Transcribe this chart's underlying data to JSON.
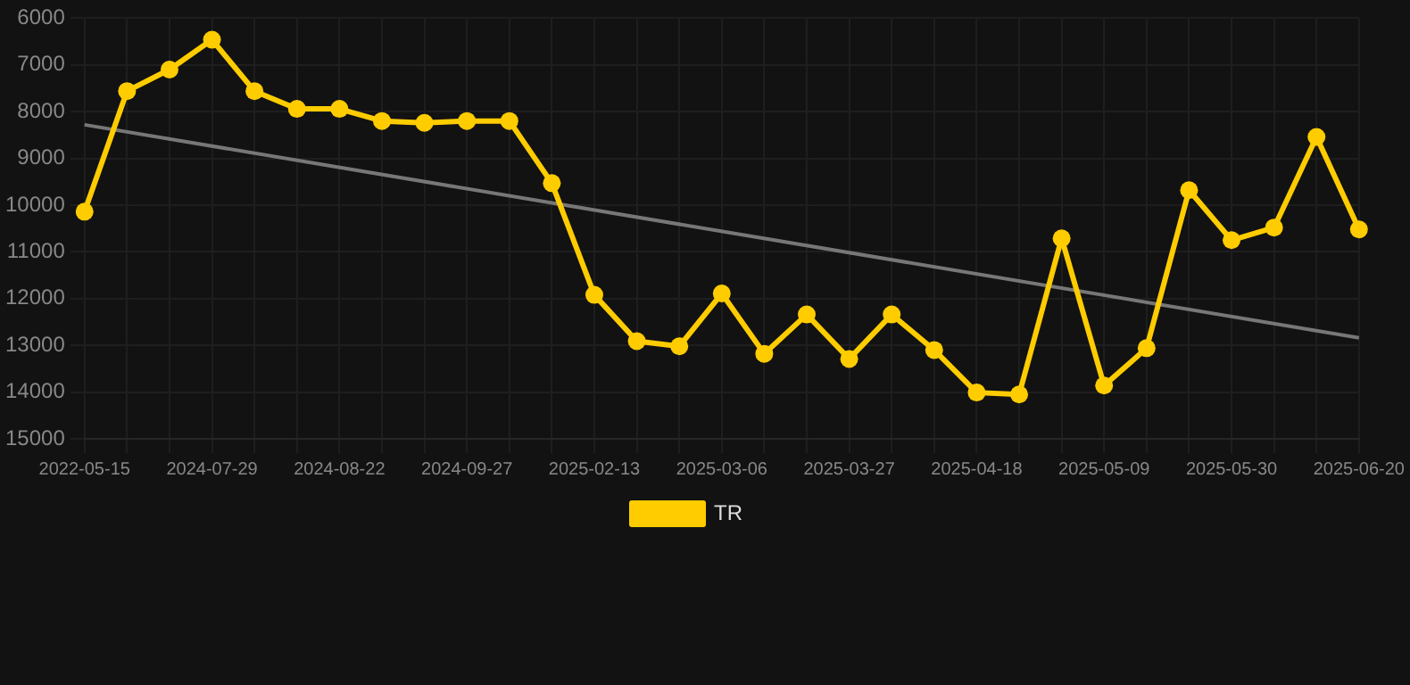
{
  "chart_data": {
    "type": "line",
    "categories": [
      "2022-05-15",
      null,
      null,
      "2024-07-29",
      null,
      null,
      "2024-08-22",
      null,
      null,
      "2024-09-27",
      null,
      null,
      "2025-02-13",
      null,
      null,
      "2025-03-06",
      null,
      null,
      "2025-03-27",
      null,
      null,
      "2025-04-18",
      null,
      null,
      "2025-05-09",
      null,
      null,
      "2025-05-30",
      null,
      null,
      "2025-06-20"
    ],
    "series": [
      {
        "name": "TR",
        "color": "#ffcc00",
        "values": [
          10140,
          7560,
          7100,
          6460,
          7560,
          7940,
          7940,
          8200,
          8240,
          8200,
          8200,
          9530,
          11920,
          12910,
          13020,
          11890,
          13180,
          12340,
          13290,
          12340,
          13100,
          14010,
          14050,
          10710,
          13860,
          13060,
          9680,
          10750,
          10480,
          8540,
          10520
        ],
        "marker": "circle"
      },
      {
        "type": "line",
        "color": "#777777",
        "values": [
          8280,
          null,
          null,
          null,
          null,
          null,
          null,
          null,
          null,
          null,
          null,
          null,
          null,
          null,
          null,
          null,
          null,
          null,
          null,
          null,
          null,
          null,
          null,
          null,
          null,
          null,
          null,
          null,
          null,
          null,
          12840
        ],
        "marker": "none"
      }
    ],
    "ylim": [
      15000,
      6000
    ],
    "yticks": [
      6000,
      7000,
      8000,
      9000,
      10000,
      11000,
      12000,
      13000,
      14000,
      15000
    ],
    "grid": true,
    "legend": "bottom"
  }
}
